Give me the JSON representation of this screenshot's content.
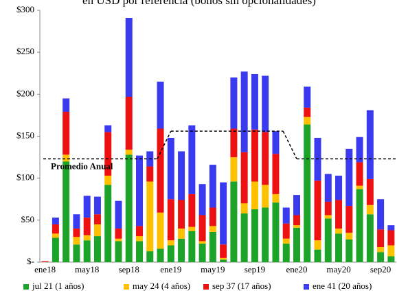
{
  "chart_data": {
    "type": "stacked_bar",
    "title": "en USD por referencia (bonos sin opcionalidades)",
    "categories": [
      "ene18",
      null,
      null,
      null,
      "may18",
      null,
      null,
      null,
      "sep18",
      null,
      null,
      null,
      "ene19",
      null,
      null,
      null,
      "may19",
      null,
      null,
      null,
      "sep19",
      null,
      null,
      null,
      "ene20",
      null,
      null,
      null,
      "may20",
      null,
      null,
      null,
      "sep20",
      null
    ],
    "series": [
      {
        "name": "jul 21 (1 años)",
        "color": "#1ea32a",
        "values": [
          0,
          29,
          120,
          21,
          26,
          31,
          92,
          25,
          128,
          25,
          13,
          16,
          20,
          28,
          37,
          22,
          36,
          3,
          96,
          58,
          63,
          65,
          71,
          22,
          41,
          164,
          15,
          52,
          34,
          27,
          87,
          57,
          12,
          7
        ]
      },
      {
        "name": "may 24 (4 años)",
        "color": "#ffc000",
        "values": [
          0,
          5,
          8,
          9,
          6,
          14,
          11,
          3,
          6,
          6,
          83,
          43,
          6,
          12,
          5,
          3,
          7,
          2,
          29,
          12,
          33,
          27,
          10,
          6,
          3,
          9,
          11,
          4,
          6,
          8,
          4,
          11,
          6,
          13
        ]
      },
      {
        "name": "sep 37 (17 años)",
        "color": "#ee1111",
        "values": [
          1,
          11,
          51,
          10,
          21,
          12,
          52,
          12,
          63,
          12,
          18,
          100,
          49,
          34,
          39,
          31,
          22,
          16,
          34,
          61,
          62,
          63,
          48,
          18,
          12,
          11,
          71,
          16,
          34,
          32,
          28,
          31,
          21,
          18
        ]
      },
      {
        "name": "ene 41 (20 años)",
        "color": "#3a3aee",
        "values": [
          0,
          8,
          16,
          17,
          26,
          21,
          8,
          33,
          94,
          84,
          18,
          56,
          73,
          58,
          82,
          37,
          51,
          74,
          61,
          96,
          66,
          67,
          27,
          19,
          24,
          25,
          51,
          33,
          29,
          68,
          30,
          82,
          36,
          6
        ]
      }
    ],
    "average_line": {
      "label": "Promedio Anual",
      "color": "#000000",
      "values": [
        123,
        156,
        123
      ]
    },
    "ylim": [
      0,
      300
    ],
    "yticks": [
      {
        "value": 0,
        "label": "$-"
      },
      {
        "value": 50,
        "label": "$50"
      },
      {
        "value": 100,
        "label": "$100"
      },
      {
        "value": 150,
        "label": "$150"
      },
      {
        "value": 200,
        "label": "$200"
      },
      {
        "value": 250,
        "label": "$250"
      },
      {
        "value": 300,
        "label": "$300"
      }
    ],
    "legend": "bottom"
  }
}
